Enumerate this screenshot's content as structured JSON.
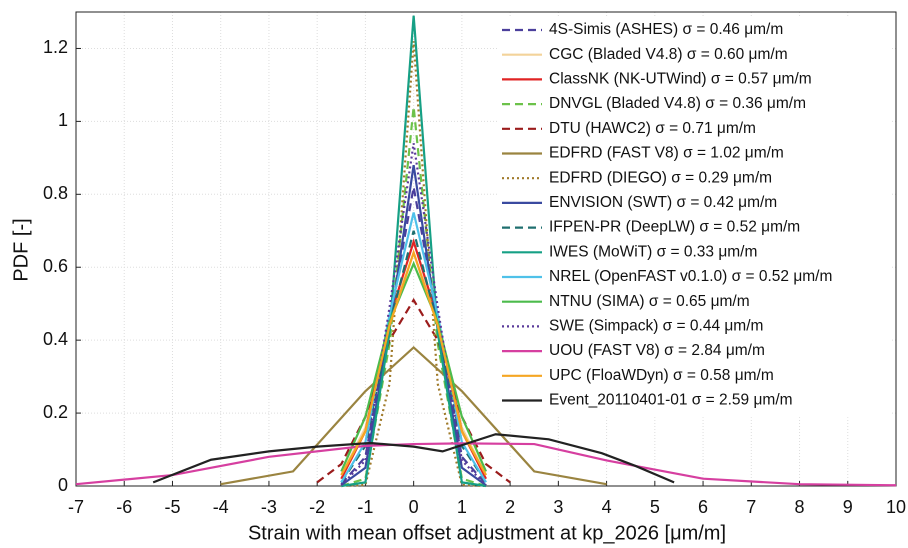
{
  "chart_data": {
    "type": "line",
    "xlabel": "Strain with mean offset adjustment at kp_2026  [μm/m]",
    "ylabel": "PDF [-]",
    "xlim": [
      -7,
      10
    ],
    "ylim": [
      0,
      1.3
    ],
    "xticks": [
      -7,
      -6,
      -5,
      -4,
      -3,
      -2,
      -1,
      0,
      1,
      2,
      3,
      4,
      5,
      6,
      7,
      8,
      9,
      10
    ],
    "yticks": [
      0,
      0.2,
      0.4,
      0.6,
      0.8,
      1,
      1.2
    ],
    "grid": true,
    "legend": "upper right",
    "series": [
      {
        "name": "4S-Simis (ASHES)  σ = 0.46 μm/m",
        "color": "#4b3f9c",
        "style": "dashed",
        "x": [
          -1.5,
          -1,
          -0.5,
          0,
          0.5,
          1,
          1.5
        ],
        "values": [
          0.005,
          0.08,
          0.45,
          0.82,
          0.45,
          0.08,
          0.005
        ]
      },
      {
        "name": "CGC (Bladed V4.8)  σ = 0.60 μm/m",
        "color": "#f3d39a",
        "style": "solid",
        "x": [
          -1.5,
          -1,
          -0.5,
          0,
          0.5,
          1,
          1.5
        ],
        "values": [
          0.03,
          0.16,
          0.45,
          0.64,
          0.45,
          0.16,
          0.03
        ]
      },
      {
        "name": "ClassNK (NK-UTWind)  σ = 0.57 μm/m",
        "color": "#e02424",
        "style": "solid",
        "x": [
          -1.5,
          -1,
          -0.5,
          0,
          0.5,
          1,
          1.5
        ],
        "values": [
          0.02,
          0.15,
          0.46,
          0.67,
          0.46,
          0.15,
          0.02
        ]
      },
      {
        "name": "DNVGL (Bladed V4.8)  σ = 0.36 μm/m",
        "color": "#6cc24a",
        "style": "dashed",
        "x": [
          -1.5,
          -1,
          -0.5,
          0,
          0.5,
          1,
          1.5
        ],
        "values": [
          0,
          0.02,
          0.39,
          1.04,
          0.39,
          0.02,
          0
        ]
      },
      {
        "name": "DTU (HAWC2)  σ = 0.71 μm/m",
        "color": "#9b1c1c",
        "style": "dashed",
        "x": [
          -2,
          -1.5,
          -1,
          -0.5,
          0,
          0.5,
          1,
          1.5,
          2
        ],
        "values": [
          0.01,
          0.06,
          0.19,
          0.4,
          0.51,
          0.4,
          0.19,
          0.06,
          0.01
        ]
      },
      {
        "name": "EDFRD (FAST V8)  σ = 1.02 μm/m",
        "color": "#9a8440",
        "style": "solid",
        "x": [
          -4,
          -2.5,
          -1,
          0,
          1,
          2.5,
          4
        ],
        "values": [
          0.005,
          0.04,
          0.26,
          0.38,
          0.26,
          0.04,
          0.005
        ]
      },
      {
        "name": "EDFRD (DIEGO)  σ = 0.29 μm/m",
        "color": "#a07a2a",
        "style": "dotted",
        "x": [
          -1.5,
          -1,
          -0.5,
          0,
          0.5,
          1,
          1.5
        ],
        "values": [
          0,
          0.003,
          0.28,
          1.22,
          0.28,
          0.003,
          0
        ]
      },
      {
        "name": "ENVISION (SWT)  σ = 0.42 μm/m",
        "color": "#3a4aa0",
        "style": "solid",
        "x": [
          -1.5,
          -1,
          -0.5,
          0,
          0.5,
          1,
          1.5
        ],
        "values": [
          0.002,
          0.05,
          0.43,
          0.88,
          0.43,
          0.05,
          0.002
        ]
      },
      {
        "name": "IFPEN-PR (DeepLW)  σ = 0.52 μm/m",
        "color": "#1f6f6f",
        "style": "dashed",
        "x": [
          -1.5,
          -1,
          -0.5,
          0,
          0.5,
          1,
          1.5
        ],
        "values": [
          0.01,
          0.11,
          0.44,
          0.7,
          0.44,
          0.11,
          0.01
        ]
      },
      {
        "name": "IWES (MoWiT)  σ = 0.33 μm/m",
        "color": "#16a085",
        "style": "solid",
        "x": [
          -1.5,
          -1,
          -0.5,
          0,
          0.5,
          1,
          1.5
        ],
        "values": [
          0,
          0.01,
          0.42,
          1.29,
          0.42,
          0.01,
          0
        ]
      },
      {
        "name": "NREL (OpenFAST v0.1.0)  σ = 0.52 μm/m",
        "color": "#4fc1e9",
        "style": "solid",
        "x": [
          -1.5,
          -1,
          -0.5,
          0,
          0.5,
          1,
          1.5
        ],
        "values": [
          0.01,
          0.12,
          0.47,
          0.75,
          0.47,
          0.12,
          0.01
        ]
      },
      {
        "name": "NTNU (SIMA)  σ = 0.65 μm/m",
        "color": "#4cbb4c",
        "style": "solid",
        "x": [
          -1.5,
          -1,
          -0.5,
          0,
          0.5,
          1,
          1.5
        ],
        "values": [
          0.04,
          0.19,
          0.45,
          0.61,
          0.45,
          0.19,
          0.04
        ]
      },
      {
        "name": "SWE (Simpack)  σ = 0.44 μm/m",
        "color": "#5a3a9a",
        "style": "dotted",
        "x": [
          -1.5,
          -1,
          -0.5,
          0,
          0.5,
          1,
          1.5
        ],
        "values": [
          0.002,
          0.07,
          0.49,
          0.94,
          0.49,
          0.07,
          0.002
        ]
      },
      {
        "name": "UOU (FAST V8)  σ = 2.84 μm/m",
        "color": "#d63fa0",
        "style": "solid",
        "x": [
          -7,
          -5,
          -3,
          -1,
          0,
          1,
          2.5,
          4,
          6,
          8,
          10
        ],
        "values": [
          0.005,
          0.03,
          0.08,
          0.11,
          0.115,
          0.117,
          0.115,
          0.07,
          0.02,
          0.005,
          0.002
        ]
      },
      {
        "name": "UPC (FloaWDyn)  σ = 0.58 μm/m",
        "color": "#f5a623",
        "style": "solid",
        "x": [
          -1.5,
          -1,
          -0.5,
          0,
          0.5,
          1,
          1.5
        ],
        "values": [
          0.03,
          0.15,
          0.44,
          0.64,
          0.44,
          0.15,
          0.03
        ]
      },
      {
        "name": "Event_20110401-01  σ = 2.59 μm/m",
        "color": "#222222",
        "style": "solid",
        "x": [
          -5.4,
          -4.2,
          -3,
          -2,
          -0.9,
          0,
          0.6,
          1.7,
          2.8,
          3.9,
          4.6,
          5.4
        ],
        "values": [
          0.01,
          0.072,
          0.095,
          0.108,
          0.118,
          0.108,
          0.095,
          0.142,
          0.128,
          0.09,
          0.055,
          0.01
        ]
      }
    ]
  }
}
